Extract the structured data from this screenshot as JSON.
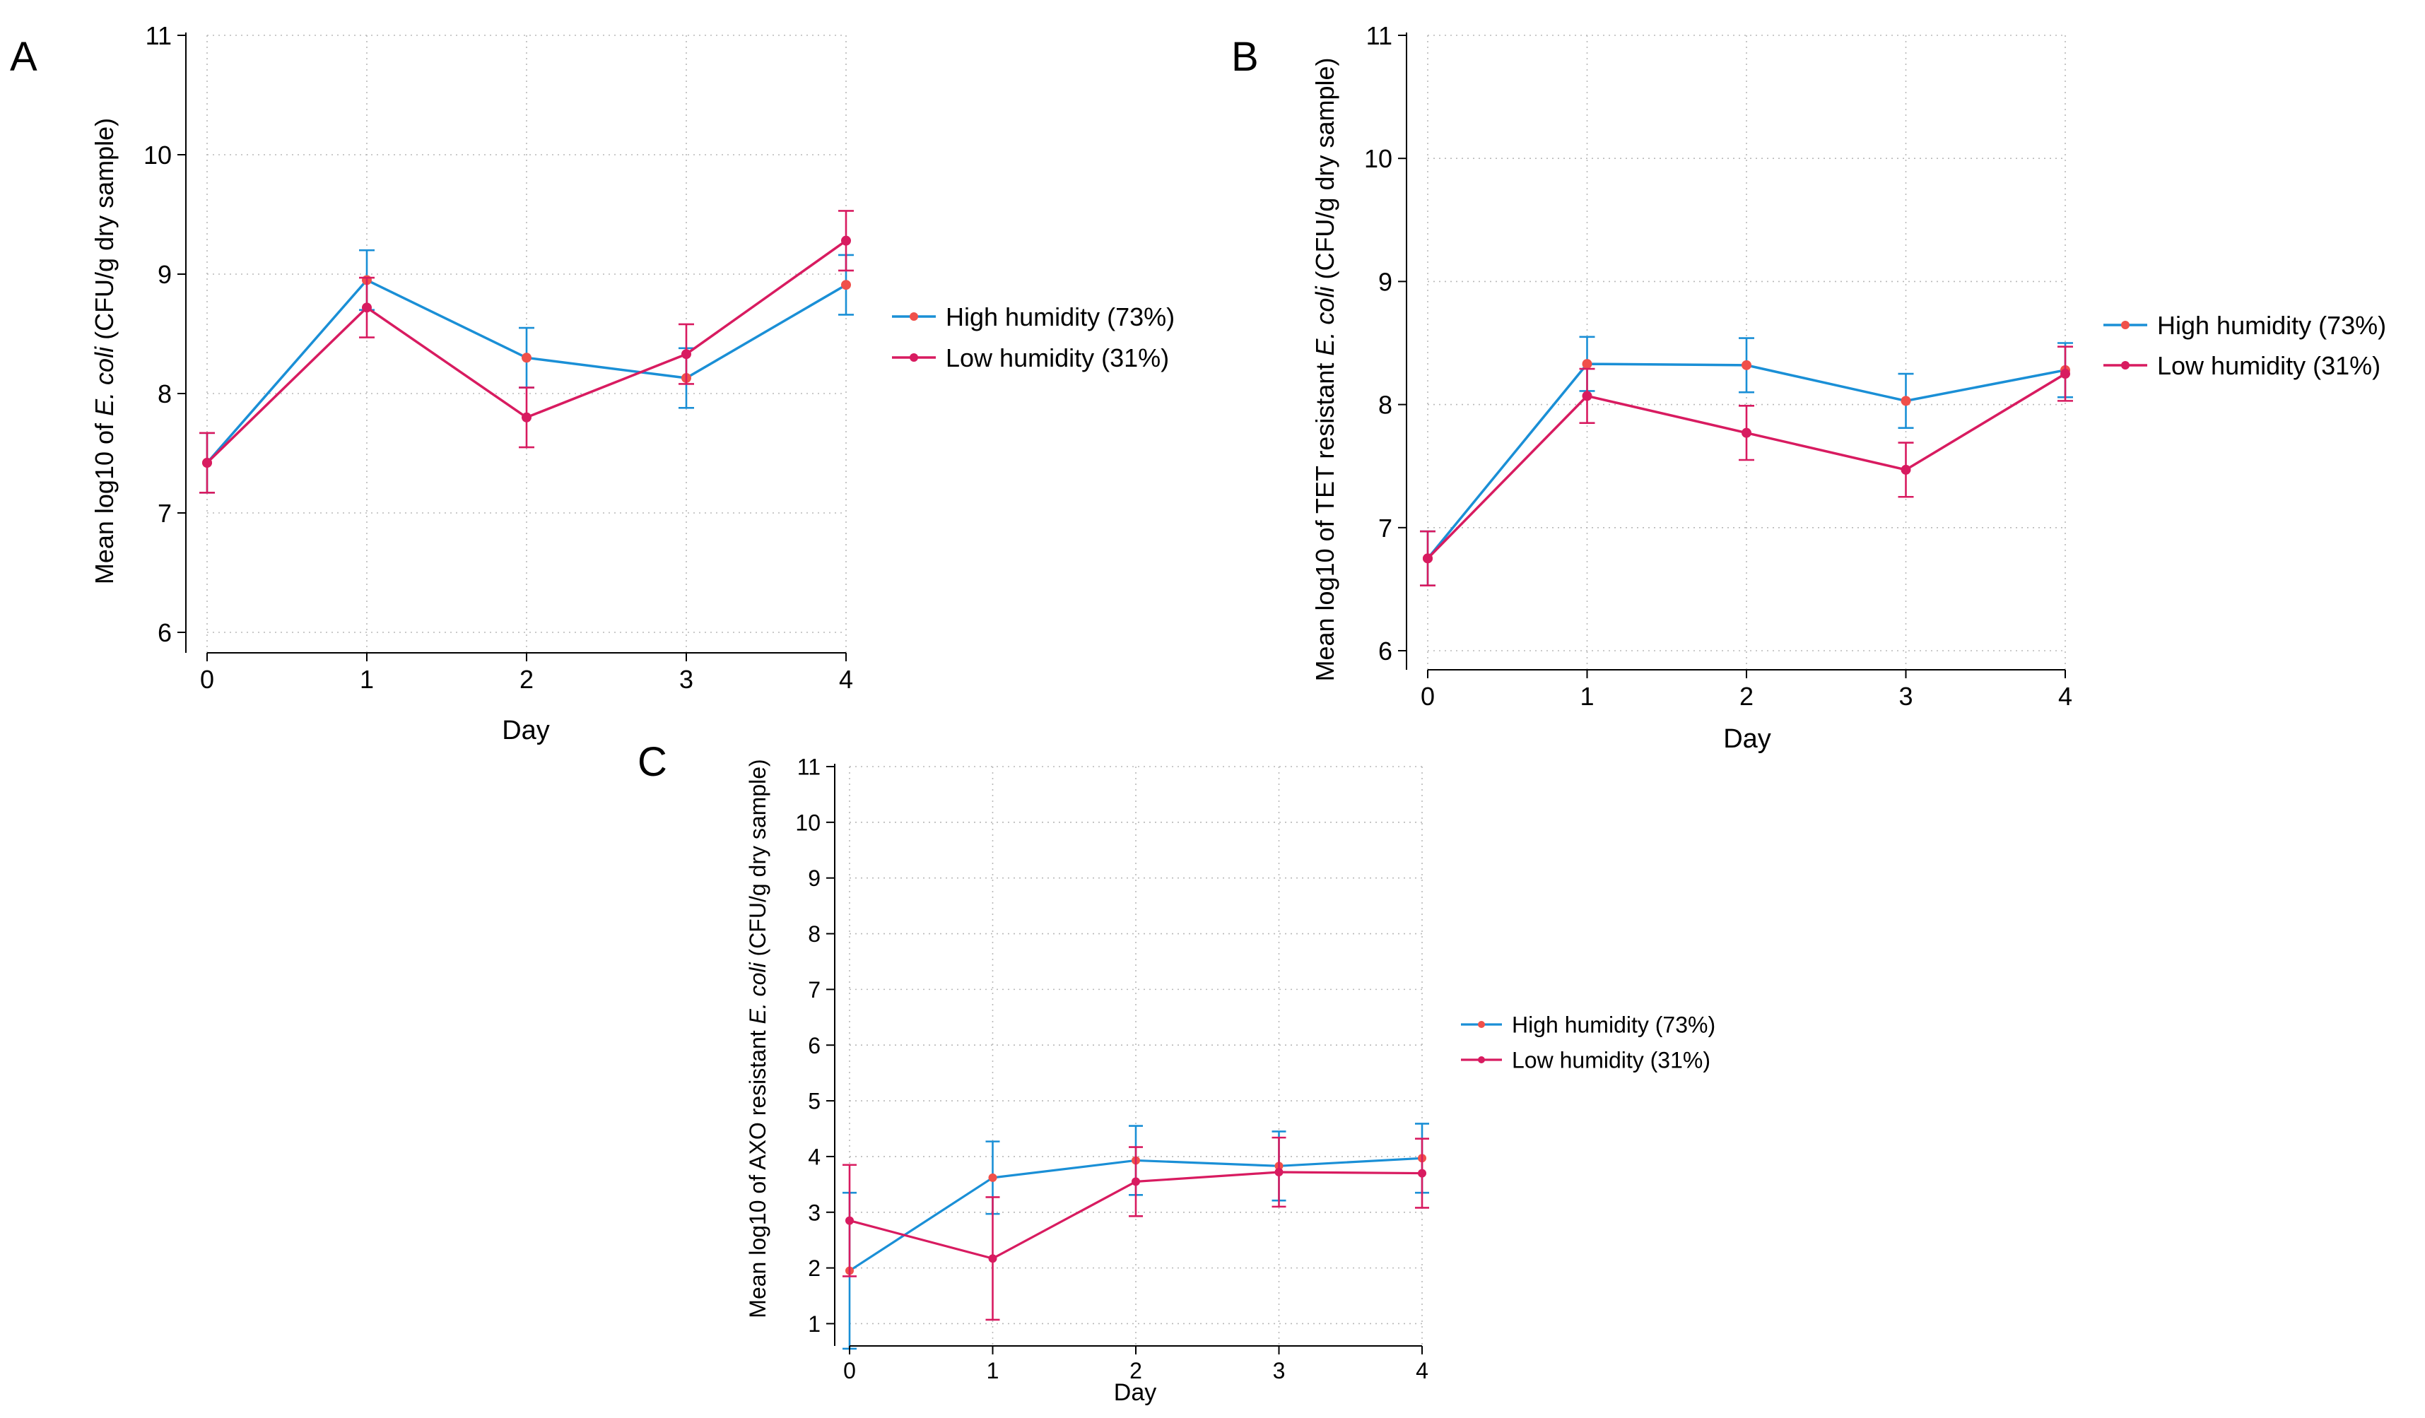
{
  "colors": {
    "high": "#1a8fd6",
    "low": "#d81b60",
    "marker": "#f0504a",
    "grid": "#b8b8b8",
    "axis": "#000000"
  },
  "legend": {
    "high": "High humidity (73%)",
    "low": "Low humidity (31%)"
  },
  "chart_data": [
    {
      "panel": "A",
      "type": "line",
      "xlabel": "Day",
      "ylabel_parts": [
        "Mean log10 of ",
        "E. coli",
        " (CFU/g dry sample)"
      ],
      "x": [
        0,
        1,
        2,
        3,
        4
      ],
      "xlim": [
        0,
        4
      ],
      "ylim": [
        6,
        11
      ],
      "yticks": [
        6,
        7,
        8,
        9,
        10,
        11
      ],
      "series": [
        {
          "name": "High humidity (73%)",
          "key": "high",
          "values": [
            7.42,
            8.95,
            8.3,
            8.13,
            8.91
          ],
          "err": [
            0.25,
            0.25,
            0.25,
            0.25,
            0.25
          ]
        },
        {
          "name": "Low humidity (31%)",
          "key": "low",
          "values": [
            7.42,
            8.72,
            7.8,
            8.33,
            9.28
          ],
          "err": [
            0.25,
            0.25,
            0.25,
            0.25,
            0.25
          ]
        }
      ]
    },
    {
      "panel": "B",
      "type": "line",
      "xlabel": "Day",
      "ylabel_parts": [
        "Mean log10 of TET resistant ",
        "E. coli",
        " (CFU/g dry sample)"
      ],
      "x": [
        0,
        1,
        2,
        3,
        4
      ],
      "xlim": [
        0,
        4
      ],
      "ylim": [
        6,
        11
      ],
      "yticks": [
        6,
        7,
        8,
        9,
        10,
        11
      ],
      "series": [
        {
          "name": "High humidity (73%)",
          "key": "high",
          "values": [
            6.75,
            8.33,
            8.32,
            8.03,
            8.28
          ],
          "err": [
            0.22,
            0.22,
            0.22,
            0.22,
            0.22
          ]
        },
        {
          "name": "Low humidity (31%)",
          "key": "low",
          "values": [
            6.75,
            8.07,
            7.77,
            7.47,
            8.25
          ],
          "err": [
            0.22,
            0.22,
            0.22,
            0.22,
            0.22
          ]
        }
      ]
    },
    {
      "panel": "C",
      "type": "line",
      "xlabel": "Day",
      "ylabel_parts": [
        "Mean log10 of AXO resistant ",
        "E. coli",
        " (CFU/g dry sample)"
      ],
      "x": [
        0,
        1,
        2,
        3,
        4
      ],
      "xlim": [
        0,
        4
      ],
      "ylim": [
        0.6,
        11
      ],
      "yticks": [
        1,
        2,
        3,
        4,
        5,
        6,
        7,
        8,
        9,
        10,
        11
      ],
      "series": [
        {
          "name": "High humidity (73%)",
          "key": "high",
          "values": [
            1.95,
            3.62,
            3.93,
            3.83,
            3.97
          ],
          "err": [
            1.4,
            0.65,
            0.62,
            0.62,
            0.62
          ]
        },
        {
          "name": "Low humidity (31%)",
          "key": "low",
          "values": [
            2.85,
            2.17,
            3.55,
            3.72,
            3.7
          ],
          "err": [
            1.0,
            1.1,
            0.62,
            0.62,
            0.62
          ]
        }
      ]
    }
  ]
}
